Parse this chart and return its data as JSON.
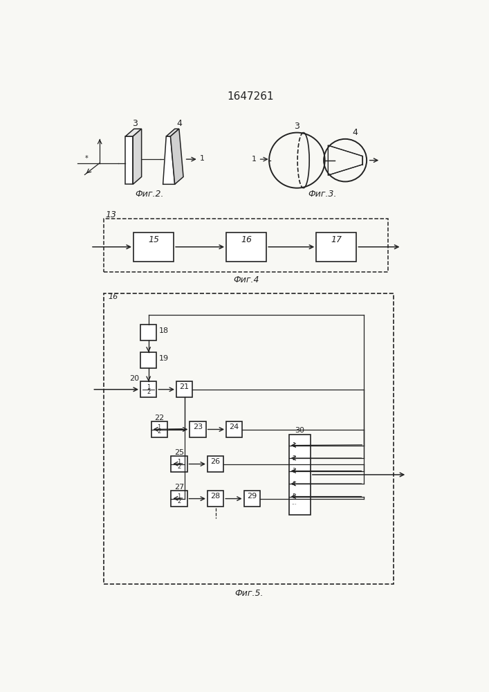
{
  "title": "1647261",
  "fig2_label": "Фиг.2.",
  "fig3_label": "Фиг.3.",
  "fig4_label": "Фиг.4",
  "fig5_label": "Фиг.5.",
  "bg_color": "#f8f8f4",
  "line_color": "#222222",
  "font_size": 9,
  "title_font_size": 11
}
